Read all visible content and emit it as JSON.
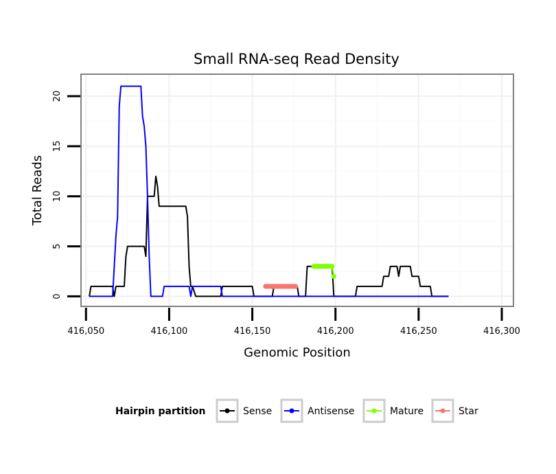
{
  "chart_data": {
    "type": "line",
    "title": "Small RNA-seq Read Density",
    "xlabel": "Genomic Position",
    "ylabel": "Total Reads",
    "xlim": [
      416047,
      416307
    ],
    "ylim": [
      -1,
      22.2
    ],
    "x_ticks": [
      {
        "value": 416050,
        "label": "416,050"
      },
      {
        "value": 416100,
        "label": "416,100"
      },
      {
        "value": 416150,
        "label": "416,150"
      },
      {
        "value": 416200,
        "label": "416,200"
      },
      {
        "value": 416250,
        "label": "416,250"
      },
      {
        "value": 416300,
        "label": "416,300"
      }
    ],
    "y_ticks": [
      {
        "value": 0,
        "label": "0"
      },
      {
        "value": 5,
        "label": "5"
      },
      {
        "value": 10,
        "label": "10"
      },
      {
        "value": 15,
        "label": "15"
      },
      {
        "value": 20,
        "label": "20"
      }
    ],
    "grid": true,
    "legend": {
      "title": "Hairpin partition",
      "position": "bottom",
      "entries": [
        "Sense",
        "Antisense",
        "Mature",
        "Star"
      ]
    },
    "series": [
      {
        "name": "Sense",
        "color": "#000000",
        "points": [
          [
            416052,
            0
          ],
          [
            416053,
            1
          ],
          [
            416066,
            1
          ],
          [
            416067,
            0
          ],
          [
            416068,
            1
          ],
          [
            416073,
            1
          ],
          [
            416074,
            4
          ],
          [
            416075,
            5
          ],
          [
            416085,
            5
          ],
          [
            416086,
            4
          ],
          [
            416087,
            10
          ],
          [
            416091,
            10
          ],
          [
            416092,
            12
          ],
          [
            416093,
            11
          ],
          [
            416094,
            9
          ],
          [
            416102,
            9
          ],
          [
            416103,
            9
          ],
          [
            416104,
            9
          ],
          [
            416110,
            9
          ],
          [
            416111,
            8
          ],
          [
            416112,
            3
          ],
          [
            416113,
            1
          ],
          [
            416114,
            1
          ],
          [
            416116,
            0
          ],
          [
            416131,
            0
          ],
          [
            416132,
            1
          ],
          [
            416150,
            1
          ],
          [
            416151,
            0
          ],
          [
            416162,
            0
          ],
          [
            416163,
            1
          ],
          [
            416177,
            1
          ],
          [
            416178,
            0
          ],
          [
            416182,
            0
          ],
          [
            416183,
            3
          ],
          [
            416186,
            3
          ],
          [
            416187,
            3
          ],
          [
            416197,
            3
          ],
          [
            416198,
            3
          ],
          [
            416199,
            0
          ],
          [
            416212,
            0
          ],
          [
            416213,
            1
          ],
          [
            416228,
            1
          ],
          [
            416229,
            2
          ],
          [
            416232,
            2
          ],
          [
            416233,
            3
          ],
          [
            416237,
            3
          ],
          [
            416238,
            2
          ],
          [
            416239,
            3
          ],
          [
            416245,
            3
          ],
          [
            416246,
            2
          ],
          [
            416250,
            2
          ],
          [
            416251,
            1
          ],
          [
            416257,
            1
          ],
          [
            416258,
            0
          ],
          [
            416268,
            0
          ]
        ]
      },
      {
        "name": "Antisense",
        "color": "#0000ff",
        "points": [
          [
            416052,
            0
          ],
          [
            416066,
            0
          ],
          [
            416067,
            3
          ],
          [
            416068,
            6
          ],
          [
            416069,
            8
          ],
          [
            416070,
            19
          ],
          [
            416071,
            21
          ],
          [
            416083,
            21
          ],
          [
            416084,
            18
          ],
          [
            416085,
            17
          ],
          [
            416086,
            15
          ],
          [
            416087,
            10
          ],
          [
            416088,
            4
          ],
          [
            416089,
            0
          ],
          [
            416096,
            0
          ],
          [
            416097,
            1
          ],
          [
            416112,
            1
          ],
          [
            416113,
            0
          ],
          [
            416114,
            1
          ],
          [
            416131,
            1
          ],
          [
            416132,
            0
          ],
          [
            416268,
            0
          ]
        ]
      },
      {
        "name": "Mature",
        "color": "#7fff00",
        "points": [
          [
            416187,
            3
          ],
          [
            416188,
            3
          ],
          [
            416189,
            3
          ],
          [
            416190,
            3
          ],
          [
            416191,
            3
          ],
          [
            416192,
            3
          ],
          [
            416193,
            3
          ],
          [
            416194,
            3
          ],
          [
            416195,
            3
          ],
          [
            416196,
            3
          ],
          [
            416197,
            3
          ],
          [
            416198,
            3
          ],
          [
            416199,
            2
          ]
        ]
      },
      {
        "name": "Star",
        "color": "#f8766d",
        "points": [
          [
            416158,
            1
          ],
          [
            416159,
            1
          ],
          [
            416160,
            1
          ],
          [
            416161,
            1
          ],
          [
            416162,
            1
          ],
          [
            416163,
            1
          ],
          [
            416164,
            1
          ],
          [
            416165,
            1
          ],
          [
            416166,
            1
          ],
          [
            416167,
            1
          ],
          [
            416168,
            1
          ],
          [
            416169,
            1
          ],
          [
            416170,
            1
          ],
          [
            416171,
            1
          ],
          [
            416172,
            1
          ],
          [
            416173,
            1
          ],
          [
            416174,
            1
          ],
          [
            416175,
            1
          ],
          [
            416176,
            1
          ]
        ]
      }
    ]
  }
}
